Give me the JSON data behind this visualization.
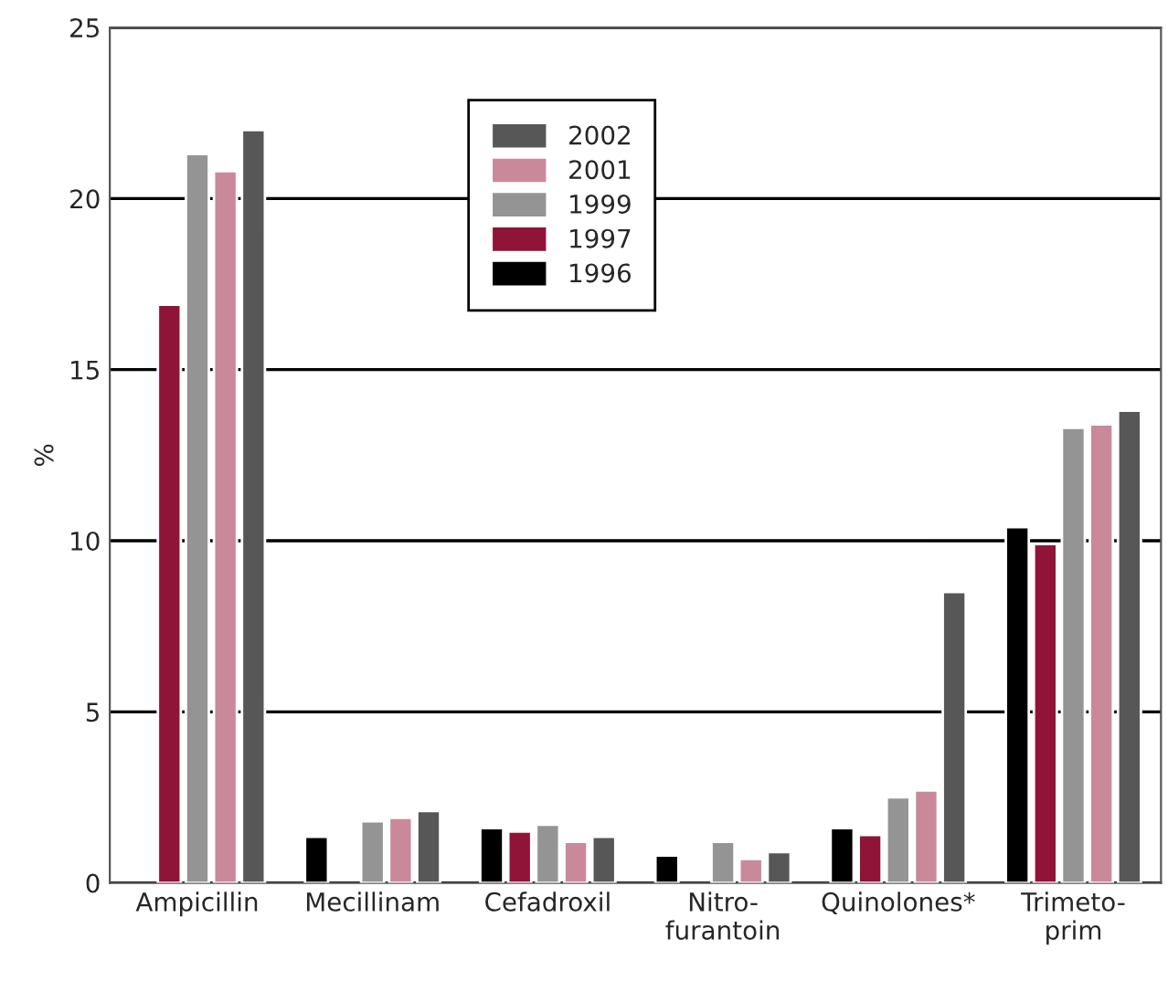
{
  "chart_data": {
    "type": "bar",
    "ylabel": "%",
    "categories": [
      "Ampicillin",
      "Mecillinam",
      "Cefadroxil",
      "Nitro-\nfurantoin",
      "Quinolones*",
      "Trimeto-\nprim"
    ],
    "series": [
      {
        "name": "1996",
        "color": "#000000",
        "values": [
          null,
          1.35,
          1.6,
          0.8,
          1.6,
          10.4
        ]
      },
      {
        "name": "1997",
        "color": "#8f1438",
        "values": [
          16.9,
          null,
          1.5,
          null,
          1.4,
          9.9
        ]
      },
      {
        "name": "1999",
        "color": "#949494",
        "values": [
          21.3,
          1.8,
          1.7,
          1.2,
          2.5,
          13.3
        ]
      },
      {
        "name": "2001",
        "color": "#c9899b",
        "values": [
          20.8,
          1.9,
          1.2,
          0.7,
          2.7,
          13.4
        ]
      },
      {
        "name": "2002",
        "color": "#575757",
        "values": [
          22.0,
          2.1,
          1.35,
          0.9,
          8.5,
          13.8
        ]
      }
    ],
    "ylim": [
      0,
      25
    ],
    "yticks": [
      0,
      5,
      10,
      15,
      20,
      25
    ],
    "grid": "y",
    "legend": "top"
  }
}
